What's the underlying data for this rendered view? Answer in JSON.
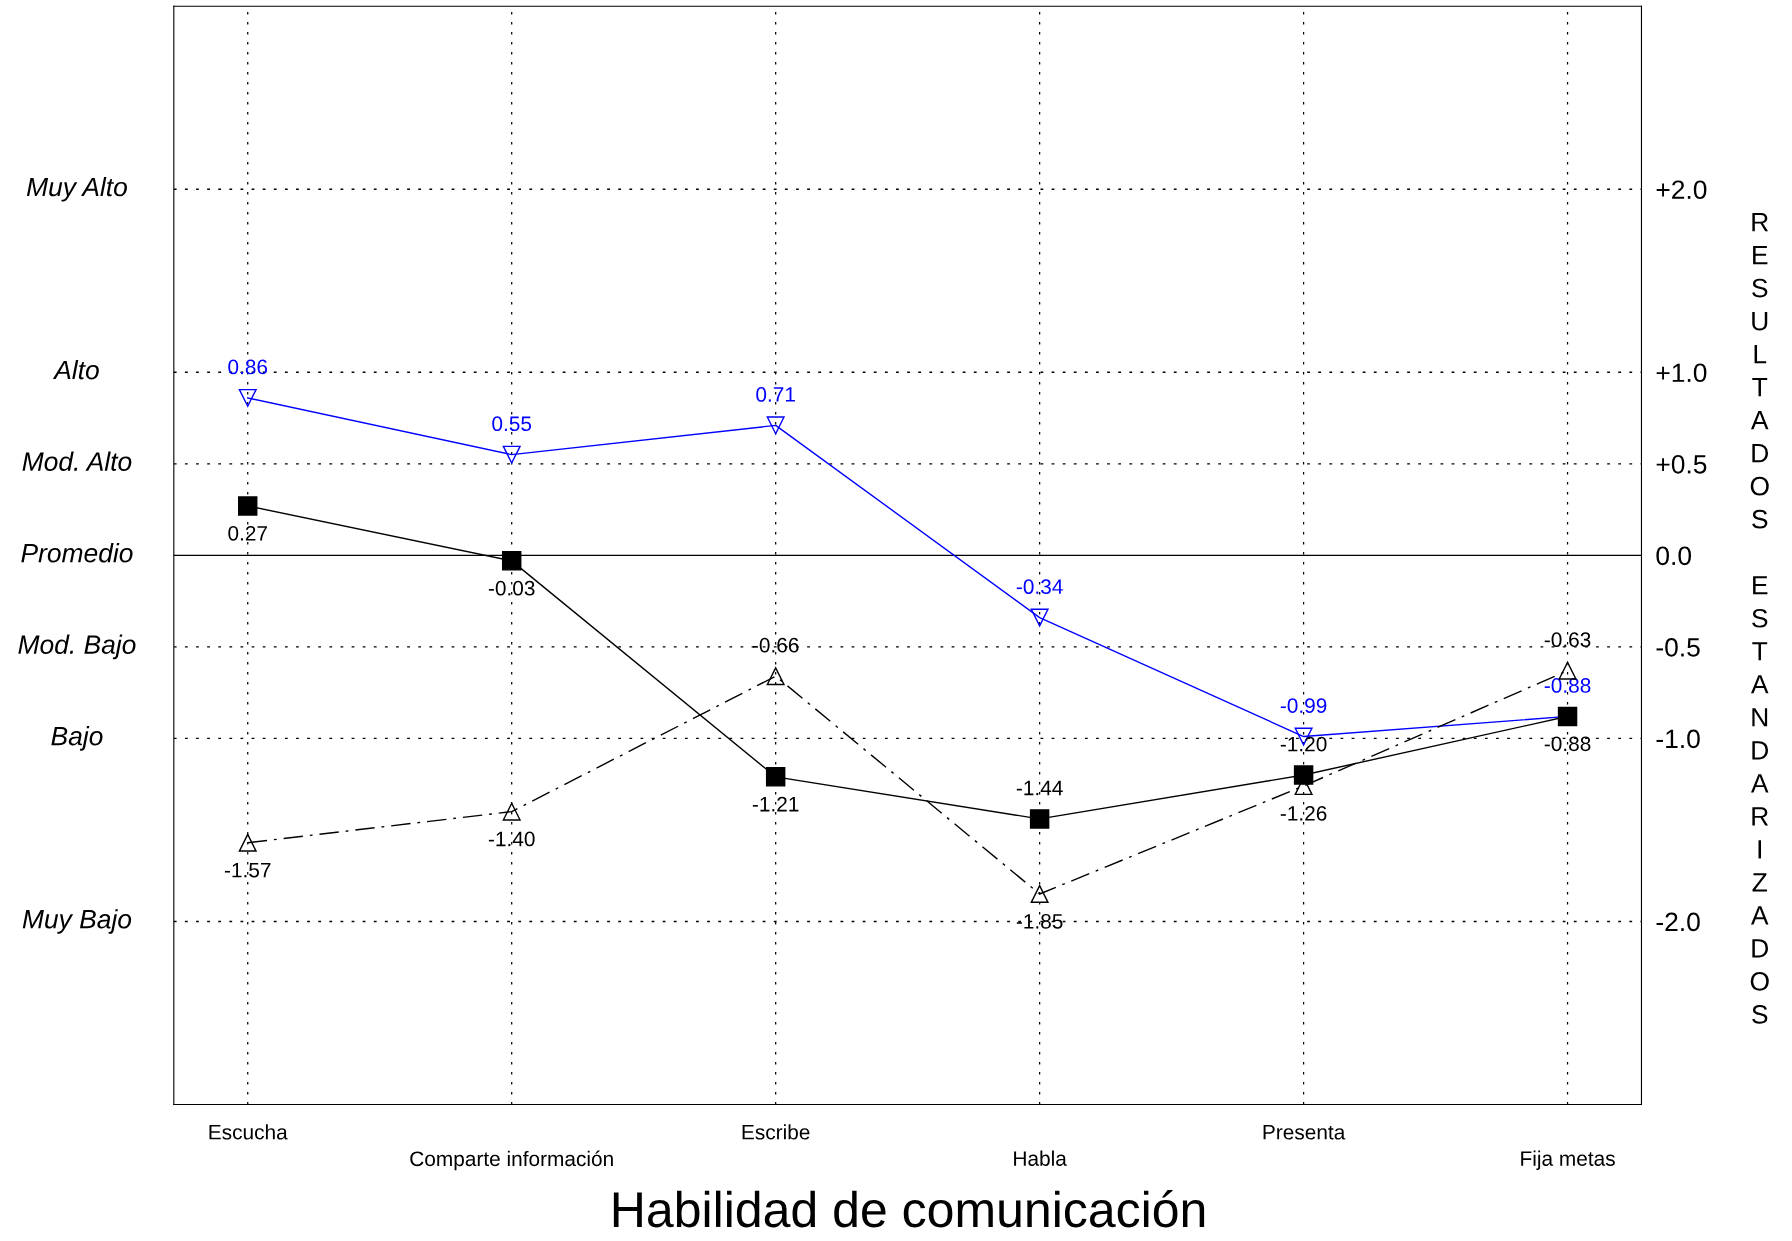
{
  "chart_data": {
    "type": "line",
    "xlabel": "Habilidad de comunicación",
    "ylabel": "RESULTADOS ESTANDARIZADOS",
    "categories": [
      "Escucha",
      "Comparte información",
      "Escribe",
      "Habla",
      "Presenta",
      "Fija metas"
    ],
    "series": [
      {
        "color": "#0000ff",
        "marker": "triangle_down",
        "line_style": "solid",
        "values": [
          0.86,
          0.55,
          0.71,
          -0.34,
          -0.99,
          -0.88
        ],
        "value_labels": [
          "0.86",
          "0.55",
          "0.71",
          "-0.34",
          "-0.99",
          "-0.88"
        ]
      },
      {
        "color": "#000000",
        "marker": "square",
        "line_style": "solid",
        "values": [
          0.27,
          -0.03,
          -1.21,
          -1.44,
          -1.2,
          -0.88
        ],
        "value_labels": [
          "0.27",
          "-0.03",
          "-1.21",
          "-1.44",
          "-1.20",
          "-0.88"
        ]
      },
      {
        "color": "#000000",
        "marker": "triangle",
        "line_style": "dashdot",
        "values": [
          -1.57,
          -1.4,
          -0.66,
          -1.85,
          -1.26,
          -0.63
        ],
        "value_labels": [
          "-1.57",
          "-1.40",
          "-0.66",
          "-1.85",
          "-1.26",
          "-0.63"
        ]
      }
    ],
    "ylim": [
      -3,
      3
    ],
    "yticks": [
      {
        "value": 2,
        "label": "+2.0"
      },
      {
        "value": 1,
        "label": "+1.0"
      },
      {
        "value": 0.5,
        "label": "+0.5"
      },
      {
        "value": 0,
        "label": "0.0"
      },
      {
        "value": -0.5,
        "label": "-0.5"
      },
      {
        "value": -1,
        "label": "-1.0"
      },
      {
        "value": -2,
        "label": "-2.0"
      }
    ],
    "ref_lines": [
      {
        "axis": "y",
        "value": 2,
        "label": "Muy Alto",
        "color": "#000000",
        "line_style": "dotted"
      },
      {
        "axis": "y",
        "value": 1,
        "label": "Alto",
        "color": "#000000",
        "line_style": "dotted"
      },
      {
        "axis": "y",
        "value": 0.5,
        "label": "Mod. Alto",
        "color": "#000000",
        "line_style": "dotted"
      },
      {
        "axis": "y",
        "value": 0,
        "label": "Promedio",
        "color": "#000000",
        "line_style": "solid"
      },
      {
        "axis": "y",
        "value": -0.5,
        "label": "Mod. Bajo",
        "color": "#000000",
        "line_style": "dotted"
      },
      {
        "axis": "y",
        "value": -1,
        "label": "Bajo",
        "color": "#000000",
        "line_style": "dotted"
      },
      {
        "axis": "y",
        "value": -2,
        "label": "Muy Bajo",
        "color": "#000000",
        "line_style": "dotted"
      }
    ],
    "grid": "x",
    "legend": false
  }
}
